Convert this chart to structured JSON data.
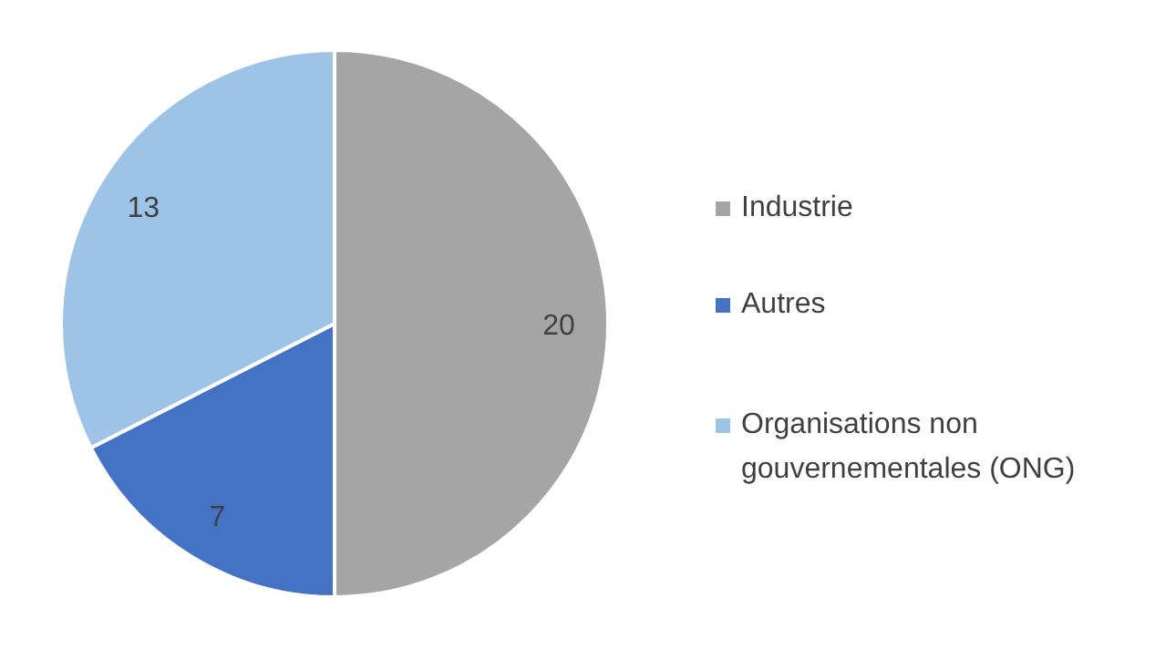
{
  "chart_data": {
    "type": "pie",
    "categories": [
      "Industrie",
      "Autres",
      "Organisations non gouvernementales (ONG)"
    ],
    "values": [
      20,
      7,
      13
    ],
    "colors": [
      "#a5a5a5",
      "#4472c4",
      "#9dc3e6"
    ],
    "data_labels": true,
    "legend": "right"
  }
}
